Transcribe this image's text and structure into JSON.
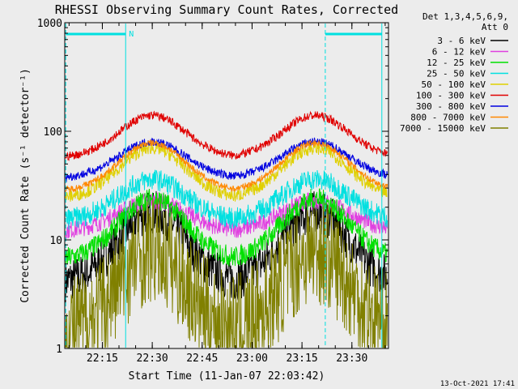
{
  "chart_data": {
    "type": "line",
    "title": "RHESSI Observing Summary Count Rates, Corrected",
    "xlabel": "Start Time (11-Jan-07 22:03:42)",
    "ylabel": "Corrected Count Rate (s⁻¹ detector⁻¹)",
    "y_scale": "log",
    "ylim": [
      1,
      1000
    ],
    "xlim": [
      "22:03:42",
      "23:41:00"
    ],
    "x_ticks": [
      "22:15",
      "22:30",
      "22:45",
      "23:00",
      "23:15",
      "23:30"
    ],
    "y_ticks": [
      "1",
      "10",
      "100",
      "1000"
    ],
    "legend_header": [
      "Det 1,3,4,5,6,9,",
      "Att 0"
    ],
    "legend_position": "right",
    "footer_date": "13-Oct-2021 17:41",
    "markers": {
      "vertical_lines": [
        "22:04",
        "22:22",
        "23:22",
        "23:39"
      ],
      "top_bars": [
        [
          "22:04",
          "22:22"
        ],
        [
          "23:22",
          "23:39"
        ]
      ],
      "flag_label": "N"
    },
    "peak_times": [
      "22:30",
      "23:19"
    ],
    "series": [
      {
        "name": "3 - 6 keV",
        "color": "#000000",
        "baseline": 4.0,
        "peak": 18,
        "noise": 0.2
      },
      {
        "name": "6 - 12 keV",
        "color": "#e040e0",
        "baseline": 12,
        "peak": 23,
        "noise": 0.08
      },
      {
        "name": "12 - 25 keV",
        "color": "#00e000",
        "baseline": 6.5,
        "peak": 24,
        "noise": 0.1
      },
      {
        "name": "25 - 50 keV",
        "color": "#00e0e0",
        "baseline": 15,
        "peak": 36,
        "noise": 0.1
      },
      {
        "name": "50 - 100 keV",
        "color": "#e0d000",
        "baseline": 24,
        "peak": 70,
        "noise": 0.06
      },
      {
        "name": "100 - 300 keV",
        "color": "#e00000",
        "baseline": 57,
        "peak": 140,
        "noise": 0.04
      },
      {
        "name": "300 - 800 keV",
        "color": "#0000e0",
        "baseline": 37,
        "peak": 80,
        "noise": 0.04
      },
      {
        "name": "800 - 7000 keV",
        "color": "#ff8800",
        "baseline": 28,
        "peak": 78,
        "noise": 0.03
      },
      {
        "name": "7000 - 15000 keV",
        "color": "#808000",
        "baseline": 1.4,
        "peak": 8,
        "noise": 0.5
      }
    ]
  }
}
